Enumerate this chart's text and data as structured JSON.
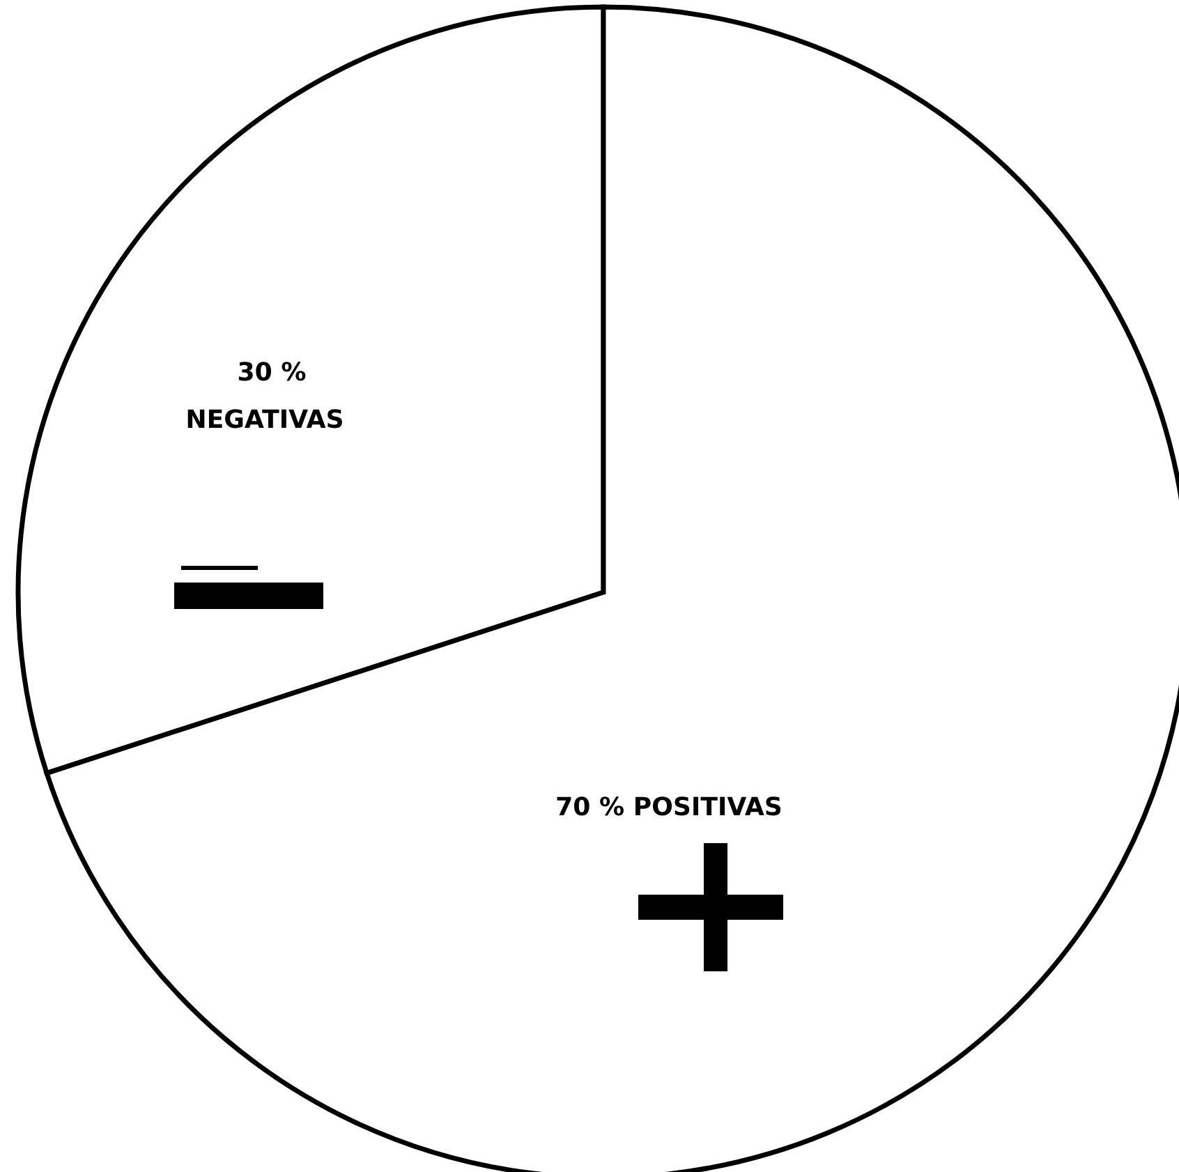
{
  "chart_data": {
    "type": "pie",
    "categories": [
      "NEGATIVAS",
      "POSITIVAS"
    ],
    "values": [
      30,
      70
    ],
    "value_labels": [
      "30 %",
      "70 %"
    ],
    "colors": [
      "#ffffff",
      "#ffffff"
    ],
    "legend": false
  }
}
